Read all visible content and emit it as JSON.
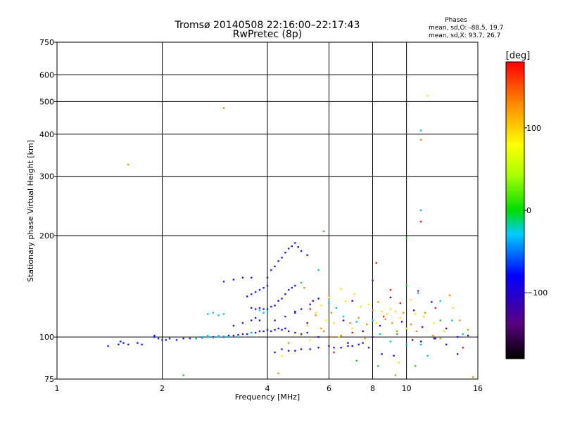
{
  "chart_data": {
    "type": "scatter",
    "title": "Tromsø 20140508 22:16:00–22:17:43",
    "subtitle": "RwPretec (8p)",
    "xlabel": "Frequency [MHz]",
    "ylabel": "Stationary phase Virtual Height [km]",
    "x_scale": "log",
    "y_scale": "log",
    "xlim": [
      1,
      16
    ],
    "ylim": [
      75,
      750
    ],
    "x_ticks": [
      1,
      2,
      4,
      6,
      8,
      10,
      16
    ],
    "x_tick_labels": [
      "1",
      "2",
      "4",
      "6",
      "8",
      "10",
      "16"
    ],
    "y_ticks": [
      75,
      100,
      200,
      300,
      400,
      500,
      600,
      750
    ],
    "y_tick_labels": [
      "75",
      "100",
      "200",
      "300",
      "400",
      "500",
      "600",
      "750"
    ],
    "grid": true,
    "phases": {
      "title": "Phases",
      "line_o": "mean, sd,O: -88.5, 19.7",
      "line_x": "mean, sd,X: 93.7, 26.7"
    },
    "colorbar": {
      "label": "[deg]",
      "range": [
        -180,
        180
      ],
      "ticks": [
        100,
        0,
        -100
      ],
      "tick_labels": [
        "100",
        "0",
        "−100"
      ]
    },
    "series": [
      {
        "points": [
          [
            1.4,
            94
          ],
          [
            1.5,
            95
          ],
          [
            1.52,
            97
          ],
          [
            1.55,
            96
          ],
          [
            1.6,
            95
          ],
          [
            1.7,
            96
          ],
          [
            1.75,
            95
          ],
          [
            1.9,
            100
          ],
          [
            1.95,
            99
          ],
          [
            2.0,
            98
          ],
          [
            2.1,
            99
          ],
          [
            2.2,
            98
          ],
          [
            2.3,
            99
          ],
          [
            2.4,
            99
          ],
          [
            2.5,
            99
          ],
          [
            2.6,
            99.5
          ],
          [
            2.7,
            100
          ],
          [
            2.8,
            100
          ],
          [
            2.9,
            100.5
          ],
          [
            3.0,
            100
          ],
          [
            3.1,
            101
          ],
          [
            3.2,
            101
          ],
          [
            3.3,
            101.5
          ],
          [
            3.4,
            102
          ],
          [
            3.5,
            102
          ],
          [
            3.6,
            103
          ],
          [
            3.7,
            103
          ],
          [
            3.8,
            104
          ],
          [
            3.9,
            104
          ],
          [
            4.0,
            105
          ],
          [
            4.1,
            104
          ],
          [
            4.2,
            105
          ],
          [
            4.3,
            106
          ],
          [
            4.4,
            105
          ],
          [
            4.5,
            106
          ],
          [
            4.6,
            104
          ],
          [
            4.8,
            103
          ],
          [
            5.0,
            102
          ],
          [
            5.2,
            103
          ],
          [
            3.2,
            108
          ],
          [
            3.4,
            110
          ],
          [
            3.6,
            112
          ],
          [
            3.7,
            114
          ],
          [
            3.8,
            112
          ],
          [
            3.6,
            122
          ],
          [
            3.7,
            121
          ],
          [
            3.8,
            122
          ],
          [
            3.9,
            121
          ],
          [
            4.0,
            121
          ],
          [
            4.1,
            123
          ],
          [
            4.2,
            124
          ],
          [
            4.3,
            128
          ],
          [
            4.4,
            130
          ],
          [
            4.5,
            134
          ],
          [
            4.6,
            138
          ],
          [
            4.7,
            140
          ],
          [
            4.8,
            142
          ],
          [
            3.5,
            132
          ],
          [
            3.6,
            134
          ],
          [
            3.7,
            136
          ],
          [
            3.8,
            138
          ],
          [
            3.9,
            140
          ],
          [
            4.0,
            142
          ],
          [
            3.0,
            146
          ],
          [
            3.2,
            148
          ],
          [
            3.4,
            150
          ],
          [
            3.6,
            150
          ],
          [
            4.0,
            150
          ],
          [
            4.1,
            158
          ],
          [
            4.2,
            162
          ],
          [
            4.3,
            168
          ],
          [
            4.4,
            172
          ],
          [
            4.5,
            178
          ],
          [
            4.6,
            183
          ],
          [
            4.7,
            186
          ],
          [
            4.8,
            190
          ],
          [
            4.9,
            185
          ],
          [
            5.0,
            180
          ],
          [
            5.2,
            175
          ],
          [
            4.2,
            90
          ],
          [
            4.4,
            92
          ],
          [
            4.6,
            91
          ],
          [
            4.8,
            91
          ],
          [
            5.0,
            92
          ],
          [
            5.3,
            92
          ],
          [
            5.6,
            93
          ],
          [
            6.0,
            94
          ],
          [
            6.2,
            93
          ],
          [
            6.5,
            93
          ],
          [
            6.8,
            94
          ],
          [
            7.0,
            94
          ],
          [
            7.3,
            95
          ],
          [
            7.5,
            96
          ],
          [
            4.2,
            112
          ],
          [
            4.5,
            115
          ],
          [
            4.8,
            118
          ],
          [
            5.0,
            121
          ],
          [
            5.3,
            125
          ],
          [
            5.6,
            130
          ],
          [
            1.9,
            101
          ],
          [
            2.05,
            98
          ],
          [
            7.8,
            93
          ],
          [
            8.5,
            89
          ],
          [
            9.2,
            88
          ],
          [
            10.5,
            120
          ],
          [
            11,
            97
          ],
          [
            12,
            99
          ],
          [
            13,
            95
          ],
          [
            14,
            100
          ]
        ]
      },
      {
        "points": [
          [
            2.5,
            99
          ],
          [
            2.6,
            100
          ],
          [
            2.7,
            100
          ],
          [
            2.8,
            99.5
          ],
          [
            2.9,
            100
          ],
          [
            3.0,
            100.5
          ],
          [
            2.7,
            117
          ],
          [
            2.8,
            118
          ],
          [
            2.9,
            116
          ],
          [
            3.0,
            117
          ],
          [
            3.9,
            118
          ],
          [
            4.0,
            119
          ],
          [
            3.8,
            120
          ],
          [
            5.0,
            145
          ],
          [
            5.6,
            158
          ],
          [
            6.0,
            126
          ],
          [
            6.3,
            122
          ],
          [
            6.6,
            115
          ],
          [
            7.2,
            111
          ],
          [
            8.0,
            112
          ],
          [
            8.4,
            102
          ],
          [
            9.0,
            97
          ],
          [
            10.0,
            95
          ],
          [
            10.8,
            135
          ],
          [
            11.0,
            95
          ],
          [
            11.5,
            88
          ],
          [
            12.5,
            128
          ],
          [
            13.5,
            112
          ],
          [
            14.5,
            102
          ],
          [
            2.7,
            101
          ],
          [
            3.1,
            100
          ],
          [
            3.3,
            100
          ],
          [
            3.6,
            103
          ],
          [
            11.0,
            410
          ],
          [
            11.0,
            238
          ]
        ]
      },
      {
        "points": [
          [
            5.0,
            101
          ],
          [
            5.2,
            108
          ],
          [
            5.5,
            118
          ],
          [
            5.7,
            124
          ],
          [
            5.9,
            112
          ],
          [
            6.0,
            131
          ],
          [
            6.2,
            110
          ],
          [
            6.4,
            100
          ],
          [
            6.7,
            128
          ],
          [
            7.0,
            106
          ],
          [
            7.4,
            123
          ],
          [
            7.8,
            125
          ],
          [
            8.2,
            110
          ],
          [
            8.5,
            119
          ],
          [
            8.8,
            117
          ],
          [
            9.0,
            121
          ],
          [
            9.3,
            119
          ],
          [
            9.6,
            114
          ],
          [
            10.0,
            106
          ],
          [
            10.3,
            129
          ],
          [
            10.6,
            117
          ],
          [
            11.2,
            115
          ],
          [
            12.0,
            110
          ],
          [
            12.8,
            104
          ],
          [
            13.6,
            122
          ],
          [
            6.5,
            139
          ],
          [
            7.1,
            134
          ],
          [
            4.4,
            88
          ],
          [
            5.3,
            98
          ],
          [
            9.5,
            84
          ],
          [
            11.5,
            520
          ]
        ]
      },
      {
        "points": [
          [
            5.1,
            140
          ],
          [
            5.5,
            116
          ],
          [
            5.8,
            104
          ],
          [
            6.1,
            118
          ],
          [
            6.5,
            101
          ],
          [
            6.9,
            110
          ],
          [
            7.3,
            114
          ],
          [
            7.6,
            99
          ],
          [
            8.0,
            120
          ],
          [
            8.3,
            127
          ],
          [
            8.7,
            113
          ],
          [
            9.1,
            110
          ],
          [
            9.4,
            104
          ],
          [
            9.8,
            118
          ],
          [
            10.3,
            109
          ],
          [
            10.7,
            104
          ],
          [
            11.3,
            118
          ],
          [
            11.9,
            101
          ],
          [
            12.5,
            99
          ],
          [
            13.3,
            133
          ],
          [
            14.2,
            112
          ],
          [
            15.0,
            105
          ],
          [
            4.6,
            96
          ],
          [
            5.7,
            106
          ],
          [
            6.1,
            100
          ],
          [
            7.7,
            109
          ],
          [
            4.3,
            78
          ],
          [
            9.3,
            77
          ],
          [
            15.5,
            76
          ],
          [
            1.6,
            325
          ],
          [
            3.0,
            478
          ],
          [
            11.0,
            385
          ]
        ]
      },
      {
        "points": [
          [
            6.2,
            90
          ],
          [
            8.2,
            166
          ],
          [
            9.0,
            138
          ],
          [
            8.6,
            115
          ],
          [
            11.0,
            220
          ],
          [
            12.1,
            122
          ],
          [
            14.5,
            93
          ],
          [
            7.0,
            103
          ],
          [
            9.6,
            126
          ],
          [
            10.8,
            137
          ],
          [
            5.3,
            121
          ]
        ]
      },
      {
        "points": [
          [
            5.8,
            206
          ],
          [
            10.0,
            197
          ],
          [
            10.0,
            142
          ],
          [
            7.2,
            85
          ],
          [
            8.3,
            82
          ],
          [
            10.6,
            82
          ],
          [
            2.3,
            77
          ],
          [
            9.4,
            102
          ],
          [
            12.5,
            112
          ]
        ]
      },
      {
        "points": [
          [
            4.8,
            119
          ],
          [
            5.2,
            110
          ],
          [
            5.6,
            100
          ],
          [
            6.6,
            112
          ],
          [
            7.0,
            128
          ],
          [
            7.5,
            104
          ],
          [
            8.0,
            100
          ],
          [
            8.4,
            108
          ],
          [
            9.0,
            131
          ],
          [
            9.7,
            111
          ],
          [
            10.4,
            98
          ],
          [
            11.1,
            107
          ],
          [
            11.8,
            127
          ],
          [
            13.0,
            106
          ],
          [
            14.0,
            89
          ],
          [
            15.0,
            101
          ],
          [
            5.4,
            128
          ],
          [
            6.8,
            96
          ],
          [
            8.0,
            147
          ],
          [
            12.1,
            99
          ]
        ]
      }
    ]
  }
}
